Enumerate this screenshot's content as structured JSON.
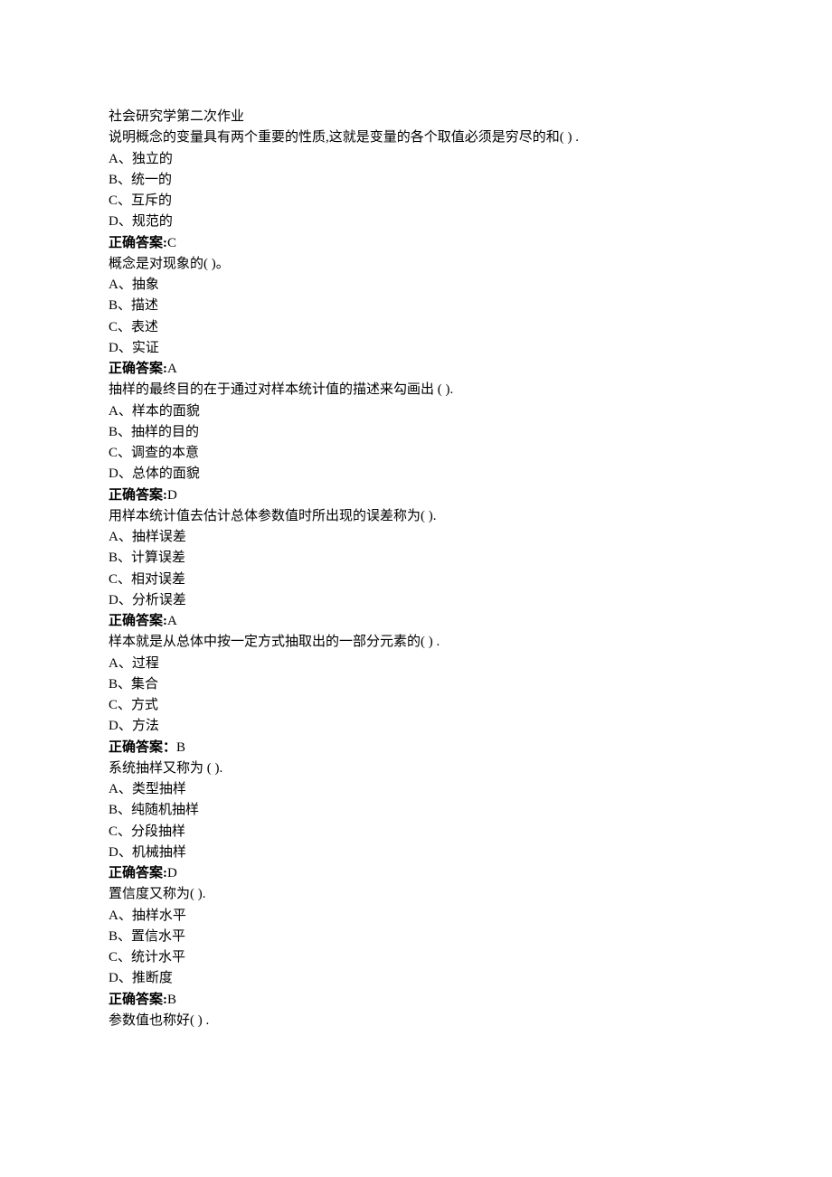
{
  "title": "社会研究学第二次作业",
  "answer_label_colon": "正确答案:",
  "answer_label_full": "正确答案：",
  "questions": [
    {
      "stem": "说明概念的变量具有两个重要的性质,这就是变量的各个取值必须是穷尽的和(   ) .",
      "options": [
        "A、独立的",
        "B、统一的",
        "C、互斥的",
        "D、规范的"
      ],
      "answer": "C",
      "label_style": "colon"
    },
    {
      "stem": "概念是对现象的(   )。",
      "options": [
        "A、抽象",
        "B、描述",
        "C、表述",
        "D、实证"
      ],
      "answer": "A",
      "label_style": "colon"
    },
    {
      "stem": "抽样的最终目的在于通过对样本统计值的描述来勾画出 (   ).",
      "options": [
        "A、样本的面貌",
        "B、抽样的目的",
        "C、调查的本意",
        "D、总体的面貌"
      ],
      "answer": "D",
      "label_style": "colon"
    },
    {
      "stem": "用样本统计值去估计总体参数值时所出现的误差称为( ).",
      "options": [
        "A、抽样误差",
        "B、计算误差",
        "C、相对误差",
        "D、分析误差"
      ],
      "answer": "A",
      "label_style": "colon"
    },
    {
      "stem": "样本就是从总体中按一定方式抽取出的一部分元素的(   ) .",
      "options": [
        "A、过程",
        "B、集合",
        "C、方式",
        "D、方法"
      ],
      "answer": "B",
      "label_style": "full"
    },
    {
      "stem": "系统抽样又称为 (   ).",
      "options": [
        "A、类型抽样",
        "B、纯随机抽样",
        "C、分段抽样",
        "D、机械抽样"
      ],
      "answer": "D",
      "label_style": "colon"
    },
    {
      "stem": "置信度又称为( ).",
      "options": [
        "A、抽样水平",
        "B、置信水平",
        "C、统计水平",
        "D、推断度"
      ],
      "answer": "B",
      "label_style": "colon"
    },
    {
      "stem": "参数值也称好(    ) .",
      "options": [],
      "answer": null,
      "label_style": null
    }
  ]
}
